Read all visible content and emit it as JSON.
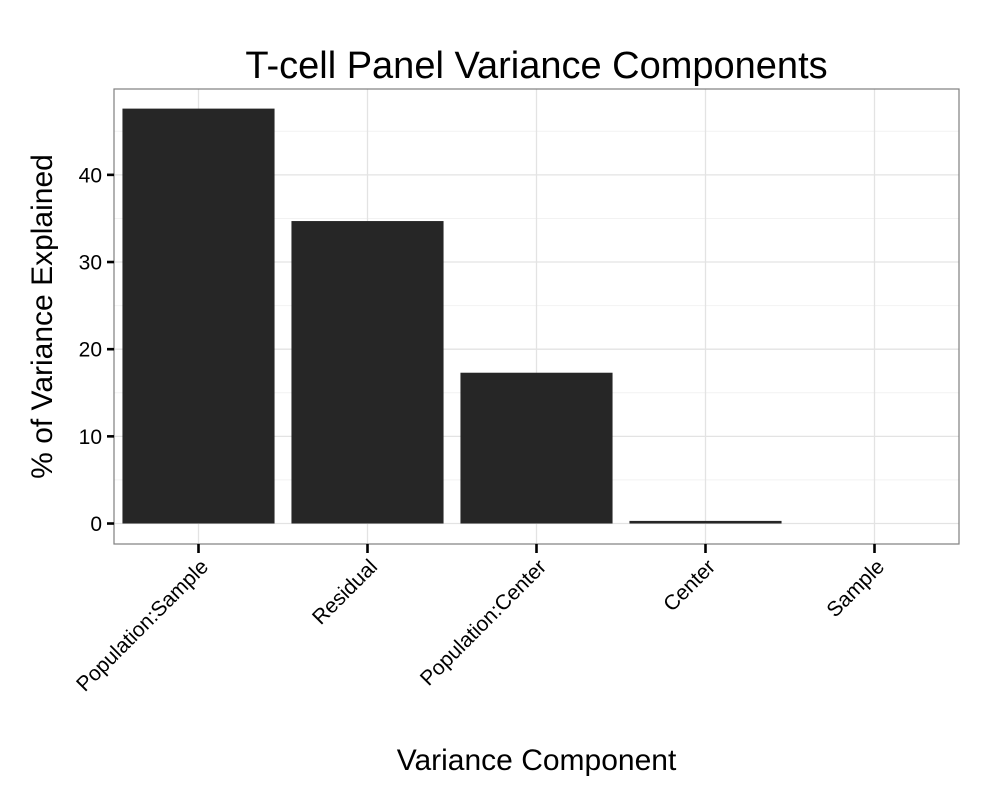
{
  "chart_data": {
    "type": "bar",
    "title": "T-cell Panel Variance Components",
    "xlabel": "Variance Component",
    "ylabel": "% of Variance Explained",
    "categories": [
      "Population:Sample",
      "Residual",
      "Population:Center",
      "Center",
      "Sample"
    ],
    "values": [
      47.6,
      34.7,
      17.3,
      0.3,
      0.0
    ],
    "yticks": [
      0,
      10,
      20,
      30,
      40
    ],
    "ylim": [
      -2.35,
      49.85
    ],
    "bar_color": "#262626",
    "grid": true,
    "legend": "none"
  }
}
